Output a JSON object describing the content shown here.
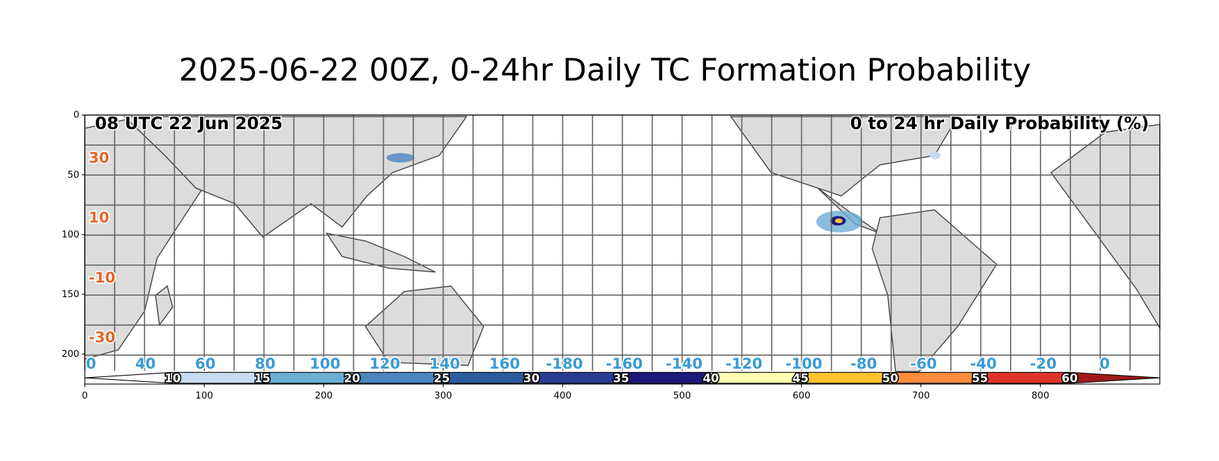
{
  "chart_data": {
    "type": "image",
    "title": "2025-06-22 00Z, 0-24hr Daily TC Formation Probability",
    "xlim": [
      0,
      900
    ],
    "ylim": [
      225,
      0
    ],
    "xticks": [
      0,
      100,
      200,
      300,
      400,
      500,
      600,
      700,
      800
    ],
    "yticks": [
      0,
      50,
      100,
      150,
      200
    ]
  },
  "map": {
    "time_label": "08 UTC 22 Jun 2025",
    "product_label": "0 to 24 hr Daily Probability (%)",
    "lat_labels": [
      30,
      10,
      -10,
      -30
    ],
    "lon_labels": [
      0,
      40,
      60,
      80,
      100,
      120,
      140,
      160,
      -180,
      -160,
      -140,
      -120,
      -100,
      -80,
      -60,
      -40,
      -20,
      0
    ]
  },
  "colorbar": {
    "labels": [
      10,
      15,
      20,
      25,
      30,
      35,
      40,
      45,
      50,
      55,
      60
    ],
    "colors": [
      "#ffffff",
      "#c6dbef",
      "#6baed6",
      "#4a86c0",
      "#2b5c9e",
      "#2a3c92",
      "#1c1a7a",
      "#ffffb2",
      "#fec32f",
      "#fd8d3c",
      "#e0362a",
      "#a11a1a"
    ]
  }
}
